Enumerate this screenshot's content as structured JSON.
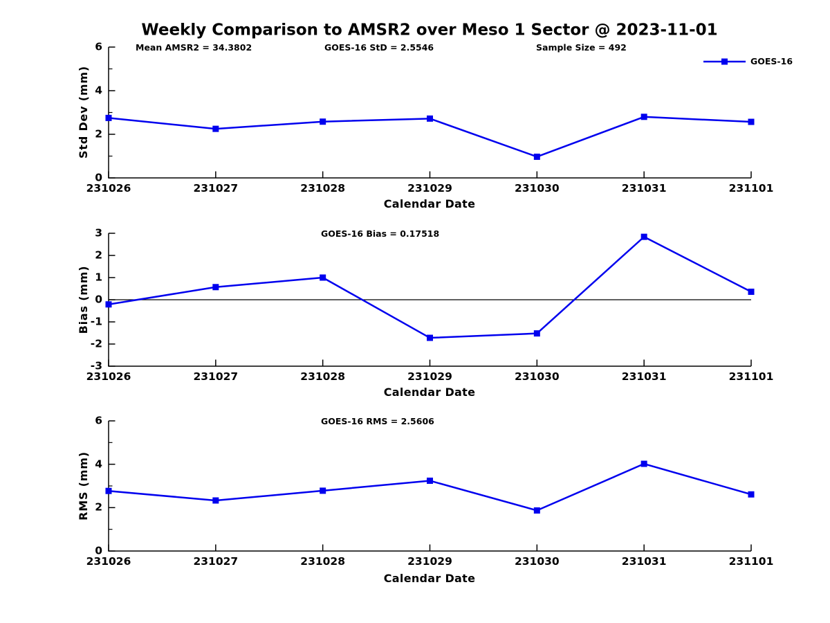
{
  "title": "Weekly Comparison to AMSR2 over Meso 1 Sector @ 2023-11-01",
  "legend": {
    "label": "GOES-16",
    "marker": "square"
  },
  "colors": {
    "line": "#0000EE",
    "axis": "#000000",
    "text": "#000000",
    "zero_line": "#000000"
  },
  "chart_data": [
    {
      "type": "line",
      "title": "",
      "annotations": [
        "Mean AMSR2 = 34.3802",
        "GOES-16 StD = 2.5546",
        "Sample Size = 492"
      ],
      "categories": [
        "231026",
        "231027",
        "231028",
        "231029",
        "231030",
        "231031",
        "231101"
      ],
      "series": [
        {
          "name": "GOES-16",
          "values": [
            2.75,
            2.25,
            2.58,
            2.72,
            0.97,
            2.8,
            2.57
          ]
        }
      ],
      "xlabel": "Calendar Date",
      "ylabel": "Std Dev (mm)",
      "ylim": [
        0,
        6
      ],
      "yticks": [
        0,
        2,
        4,
        6
      ],
      "yticks_minor": [
        1,
        3,
        5
      ],
      "grid": false,
      "zero_line": false,
      "legend_position": "top-right"
    },
    {
      "type": "line",
      "title": "",
      "annotations": [
        "GOES-16 Bias  = 0.17518"
      ],
      "categories": [
        "231026",
        "231027",
        "231028",
        "231029",
        "231030",
        "231031",
        "231101"
      ],
      "series": [
        {
          "name": "GOES-16",
          "values": [
            -0.21,
            0.57,
            1.0,
            -1.72,
            -1.52,
            2.84,
            0.36
          ]
        }
      ],
      "xlabel": "Calendar Date",
      "ylabel": "Bias (mm)",
      "ylim": [
        -3,
        3
      ],
      "yticks": [
        -3,
        -2,
        -1,
        0,
        1,
        2,
        3
      ],
      "yticks_minor": [],
      "grid": false,
      "zero_line": true,
      "legend_position": "none"
    },
    {
      "type": "line",
      "title": "",
      "annotations": [
        "GOES-16 RMS = 2.5606"
      ],
      "categories": [
        "231026",
        "231027",
        "231028",
        "231029",
        "231030",
        "231031",
        "231101"
      ],
      "series": [
        {
          "name": "GOES-16",
          "values": [
            2.77,
            2.33,
            2.78,
            3.24,
            1.87,
            4.02,
            2.61
          ]
        }
      ],
      "xlabel": "Calendar Date",
      "ylabel": "RMS (mm)",
      "ylim": [
        0,
        6
      ],
      "yticks": [
        0,
        2,
        4,
        6
      ],
      "yticks_minor": [
        1,
        3,
        5
      ],
      "grid": false,
      "zero_line": false,
      "legend_position": "none"
    }
  ]
}
